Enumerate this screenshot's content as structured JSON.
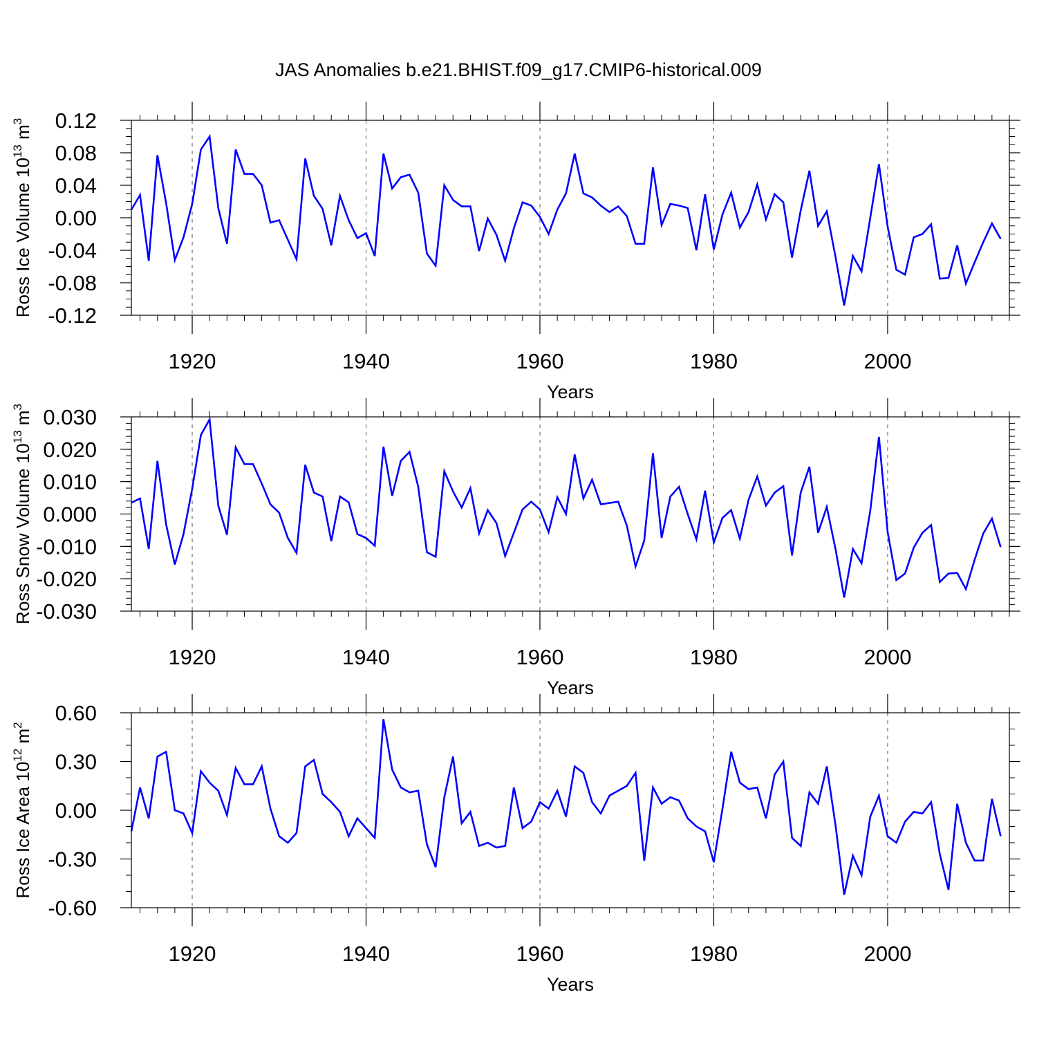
{
  "title": "JAS Anomalies b.e21.BHIST.f09_g17.CMIP6-historical.009",
  "colors": {
    "line": "#0000ff",
    "axis": "#000000",
    "grid": "#555555",
    "background": "#ffffff"
  },
  "chart_data": [
    {
      "type": "line",
      "ylabel_main": "Ross Ice Volume 10",
      "ylabel_exp": "13",
      "ylabel_unit": " m",
      "ylabel_unit_exp": "3",
      "xlabel": "Years",
      "xlim": [
        1913,
        2014
      ],
      "ylim": [
        -0.12,
        0.12
      ],
      "yticks": [
        -0.12,
        -0.08,
        -0.04,
        0.0,
        0.04,
        0.08,
        0.12
      ],
      "ytick_labels": [
        "-0.12",
        "-0.08",
        "-0.04",
        "0.00",
        "0.04",
        "0.08",
        "0.12"
      ],
      "yminor": 0.01,
      "xticks": [
        1920,
        1940,
        1960,
        1980,
        2000
      ],
      "xtick_labels": [
        "1920",
        "1940",
        "1960",
        "1980",
        "2000"
      ],
      "xstart": 1913,
      "values": [
        0.01,
        0.028,
        -0.053,
        0.077,
        0.018,
        -0.052,
        -0.024,
        0.017,
        0.084,
        0.1,
        0.012,
        -0.032,
        0.084,
        0.054,
        0.054,
        0.04,
        -0.006,
        -0.003,
        -0.027,
        -0.051,
        0.073,
        0.027,
        0.011,
        -0.034,
        0.027,
        -0.003,
        -0.025,
        -0.019,
        -0.047,
        0.079,
        0.036,
        0.05,
        0.053,
        0.031,
        -0.044,
        -0.059,
        0.04,
        0.022,
        0.014,
        0.014,
        -0.041,
        -0.001,
        -0.021,
        -0.053,
        -0.013,
        0.019,
        0.015,
        0.001,
        -0.02,
        0.01,
        0.03,
        0.079,
        0.03,
        0.025,
        0.015,
        0.007,
        0.014,
        0.002,
        -0.032,
        -0.032,
        0.062,
        -0.009,
        0.017,
        0.015,
        0.012,
        -0.04,
        0.029,
        -0.039,
        0.004,
        0.031,
        -0.012,
        0.007,
        0.041,
        -0.002,
        0.029,
        0.019,
        -0.049,
        0.009,
        0.058,
        -0.01,
        0.008,
        -0.048,
        -0.108,
        -0.047,
        -0.066,
        0.0,
        0.066,
        -0.011,
        -0.064,
        -0.07,
        -0.024,
        -0.02,
        -0.008,
        -0.075,
        -0.074,
        -0.034,
        -0.081,
        -0.055,
        -0.03,
        -0.007,
        -0.026
      ]
    },
    {
      "type": "line",
      "ylabel_main": "Ross Snow Volume 10",
      "ylabel_exp": "13",
      "ylabel_unit": " m",
      "ylabel_unit_exp": "3",
      "xlabel": "Years",
      "xlim": [
        1913,
        2014
      ],
      "ylim": [
        -0.03,
        0.03
      ],
      "yticks": [
        -0.03,
        -0.02,
        -0.01,
        0.0,
        0.01,
        0.02,
        0.03
      ],
      "ytick_labels": [
        "-0.030",
        "-0.020",
        "-0.010",
        "0.000",
        "0.010",
        "0.020",
        "0.030"
      ],
      "yminor": 0.002,
      "xticks": [
        1920,
        1940,
        1960,
        1980,
        2000
      ],
      "xtick_labels": [
        "1920",
        "1940",
        "1960",
        "1980",
        "2000"
      ],
      "xstart": 1913,
      "values": [
        0.0035,
        0.0048,
        -0.0108,
        0.0164,
        -0.0032,
        -0.0156,
        -0.0062,
        0.0078,
        0.0244,
        0.0292,
        0.0026,
        -0.0064,
        0.0206,
        0.0154,
        0.0154,
        0.0094,
        0.003,
        0.0004,
        -0.0074,
        -0.012,
        0.0152,
        0.0066,
        0.0054,
        -0.0084,
        0.0054,
        0.0036,
        -0.0062,
        -0.0074,
        -0.0098,
        0.0208,
        0.0056,
        0.0164,
        0.0192,
        0.0084,
        -0.0118,
        -0.0132,
        0.0132,
        0.007,
        0.002,
        0.008,
        -0.006,
        0.0012,
        -0.0028,
        -0.013,
        -0.0058,
        0.0014,
        0.0038,
        0.0014,
        -0.0056,
        0.0052,
        0.0,
        0.0184,
        0.0048,
        0.0106,
        0.003,
        0.0034,
        0.0038,
        -0.0036,
        -0.0162,
        -0.0082,
        0.0188,
        -0.0074,
        0.0054,
        0.0084,
        0.0,
        -0.0078,
        0.0072,
        -0.0088,
        -0.0012,
        0.0012,
        -0.0076,
        0.0044,
        0.0116,
        0.0026,
        0.0066,
        0.0086,
        -0.0128,
        0.0066,
        0.0146,
        -0.0058,
        0.0022,
        -0.0108,
        -0.0258,
        -0.0108,
        -0.0152,
        0.001,
        0.0238,
        -0.0056,
        -0.0204,
        -0.0184,
        -0.0104,
        -0.0058,
        -0.0034,
        -0.021,
        -0.0184,
        -0.0182,
        -0.0232,
        -0.0142,
        -0.006,
        -0.0014,
        -0.0102
      ]
    },
    {
      "type": "line",
      "ylabel_main": "Ross Ice Area 10",
      "ylabel_exp": "12",
      "ylabel_unit": " m",
      "ylabel_unit_exp": "2",
      "xlabel": "Years",
      "xlim": [
        1913,
        2014
      ],
      "ylim": [
        -0.6,
        0.6
      ],
      "yticks": [
        -0.6,
        -0.3,
        0.0,
        0.3,
        0.6
      ],
      "ytick_labels": [
        "-0.60",
        "-0.30",
        "0.00",
        "0.30",
        "0.60"
      ],
      "yminor": 0.1,
      "xticks": [
        1920,
        1940,
        1960,
        1980,
        2000
      ],
      "xtick_labels": [
        "1920",
        "1940",
        "1960",
        "1980",
        "2000"
      ],
      "xstart": 1913,
      "values": [
        -0.13,
        0.14,
        -0.05,
        0.33,
        0.36,
        0.0,
        -0.02,
        -0.14,
        0.24,
        0.17,
        0.12,
        -0.03,
        0.26,
        0.16,
        0.16,
        0.27,
        0.01,
        -0.16,
        -0.2,
        -0.14,
        0.27,
        0.31,
        0.1,
        0.05,
        -0.01,
        -0.16,
        -0.05,
        -0.11,
        -0.17,
        0.56,
        0.25,
        0.14,
        0.11,
        0.12,
        -0.21,
        -0.35,
        0.08,
        0.33,
        -0.08,
        -0.01,
        -0.22,
        -0.2,
        -0.23,
        -0.22,
        0.14,
        -0.11,
        -0.07,
        0.05,
        0.01,
        0.12,
        -0.04,
        0.27,
        0.23,
        0.05,
        -0.02,
        0.09,
        0.12,
        0.15,
        0.23,
        -0.31,
        0.14,
        0.04,
        0.08,
        0.06,
        -0.05,
        -0.1,
        -0.13,
        -0.32,
        0.01,
        0.36,
        0.17,
        0.13,
        0.14,
        -0.05,
        0.22,
        0.3,
        -0.17,
        -0.22,
        0.11,
        0.04,
        0.27,
        -0.09,
        -0.52,
        -0.28,
        -0.4,
        -0.04,
        0.09,
        -0.16,
        -0.2,
        -0.07,
        -0.01,
        -0.02,
        0.05,
        -0.27,
        -0.49,
        0.04,
        -0.2,
        -0.31,
        -0.31,
        0.07,
        -0.16
      ]
    }
  ]
}
